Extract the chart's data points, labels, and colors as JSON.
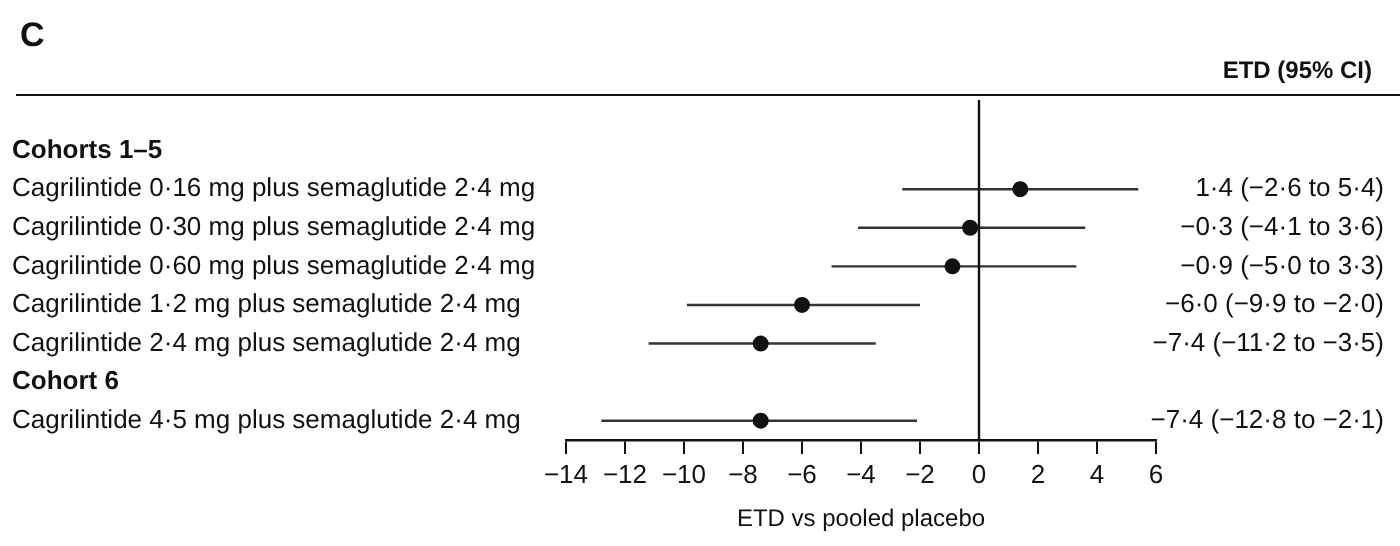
{
  "chart_data": {
    "type": "scatter",
    "orientation": "horizontal",
    "title": "C",
    "xlabel": "ETD vs pooled placebo",
    "annotations": [
      "ETD (95% CI)"
    ],
    "categories": [
      "Cohorts 1–5",
      "Cagrilintide 0·16 mg plus semaglutide 2·4 mg",
      "Cagrilintide 0·30 mg plus semaglutide 2·4 mg",
      "Cagrilintide 0·60 mg plus semaglutide 2·4 mg",
      "Cagrilintide 1·2 mg plus semaglutide 2·4 mg",
      "Cagrilintide 2·4 mg plus semaglutide 2·4 mg",
      "Cohort 6",
      "Cagrilintide 4·5 mg plus semaglutide 2·4 mg"
    ],
    "values": [
      null,
      1.4,
      -0.3,
      -0.9,
      -6.0,
      -7.4,
      null,
      -7.4
    ],
    "errors": [
      null,
      [
        -2.6,
        5.4
      ],
      [
        -4.1,
        3.6
      ],
      [
        -5.0,
        3.3
      ],
      [
        -9.9,
        -2.0
      ],
      [
        -11.2,
        -3.5
      ],
      null,
      [
        -12.8,
        -2.1
      ]
    ],
    "value_labels": [
      null,
      "1·4 (−2·6 to 5·4)",
      "−0·3 (−4·1 to 3·6)",
      "−0·9 (−5·0 to 3·3)",
      "−6·0 (−9·9 to −2·0)",
      "−7·4 (−11·2 to −3·5)",
      null,
      "−7·4 (−12·8 to −2·1)"
    ],
    "color": "#111111",
    "marker": "circle",
    "grid": false,
    "legend": false,
    "xlim": [
      -14,
      6
    ],
    "xticks": [
      {
        "value": -14,
        "label": "−14"
      },
      {
        "value": -12,
        "label": "−12"
      },
      {
        "value": -10,
        "label": "−10"
      },
      {
        "value": -8,
        "label": "−8"
      },
      {
        "value": -6,
        "label": "−6"
      },
      {
        "value": -4,
        "label": "−4"
      },
      {
        "value": -2,
        "label": "−2"
      },
      0,
      2,
      4,
      6
    ],
    "ref_lines": [
      {
        "axis": "x",
        "value": 0,
        "color": "#111111"
      }
    ]
  }
}
